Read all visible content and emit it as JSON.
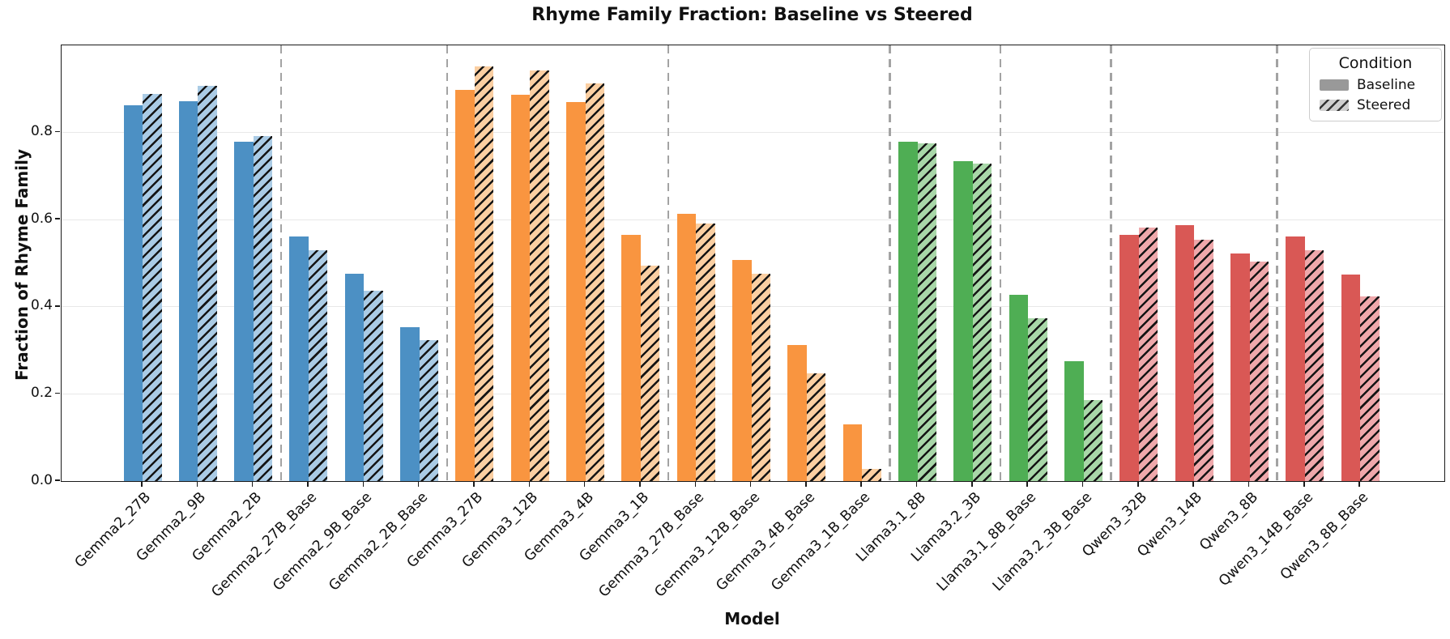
{
  "title": "Rhyme Family Fraction: Baseline vs Steered",
  "chart_data": {
    "type": "bar",
    "title": "Rhyme Family Fraction: Baseline vs Steered",
    "xlabel": "Model",
    "ylabel": "Fraction of Rhyme Family",
    "ylim": [
      0.0,
      1.0
    ],
    "yticks": [
      0.0,
      0.2,
      0.4,
      0.6,
      0.8
    ],
    "ytick_labels": [
      "0.0",
      "0.2",
      "0.4",
      "0.6",
      "0.8"
    ],
    "grid": true,
    "legend": {
      "title": "Condition",
      "entries": [
        "Baseline",
        "Steered"
      ],
      "position": "upper right",
      "baseline_swatch_color": "#999999",
      "steered_swatch_bg": "#cfcfcf",
      "steered_swatch_hatch": "#333333"
    },
    "categories": [
      "Gemma2_27B",
      "Gemma2_9B",
      "Gemma2_2B",
      "Gemma2_27B_Base",
      "Gemma2_9B_Base",
      "Gemma2_2B_Base",
      "Gemma3_27B",
      "Gemma3_12B",
      "Gemma3_4B",
      "Gemma3_1B",
      "Gemma3_27B_Base",
      "Gemma3_12B_Base",
      "Gemma3_4B_Base",
      "Gemma3_1B_Base",
      "Llama3.1_8B",
      "Llama3.2_3B",
      "Llama3.1_8B_Base",
      "Llama3.2_3B_Base",
      "Qwen3_32B",
      "Qwen3_14B",
      "Qwen3_8B",
      "Qwen3_14B_Base",
      "Qwen3_8B_Base"
    ],
    "series": [
      {
        "name": "Baseline",
        "values": [
          0.862,
          0.871,
          0.779,
          0.561,
          0.476,
          0.354,
          0.898,
          0.887,
          0.87,
          0.566,
          0.614,
          0.508,
          0.313,
          0.131,
          0.779,
          0.735,
          0.428,
          0.275,
          0.566,
          0.588,
          0.522,
          0.561,
          0.474
        ]
      },
      {
        "name": "Steered",
        "values": [
          0.888,
          0.907,
          0.791,
          0.529,
          0.436,
          0.323,
          0.952,
          0.942,
          0.913,
          0.495,
          0.592,
          0.475,
          0.247,
          0.027,
          0.776,
          0.729,
          0.374,
          0.185,
          0.581,
          0.554,
          0.504,
          0.53,
          0.423
        ]
      }
    ],
    "families": [
      {
        "name": "Gemma2",
        "color": "#4C90C4",
        "light_color": "#AACBE5",
        "count": 6
      },
      {
        "name": "Gemma3",
        "color": "#F99540",
        "light_color": "#FBCFA2",
        "count": 8
      },
      {
        "name": "Llama3",
        "color": "#4FAE54",
        "light_color": "#A8D7A8",
        "count": 4
      },
      {
        "name": "Qwen3",
        "color": "#D95855",
        "light_color": "#EFA8AB",
        "count": 5
      }
    ],
    "separators_after_index": [
      2,
      5,
      9,
      13,
      15,
      17,
      20
    ],
    "colors": {
      "hatch": "#141414",
      "grid": "#e8e8e8",
      "separator": "#a3a3a3",
      "spine": "#1a1a1a"
    }
  }
}
